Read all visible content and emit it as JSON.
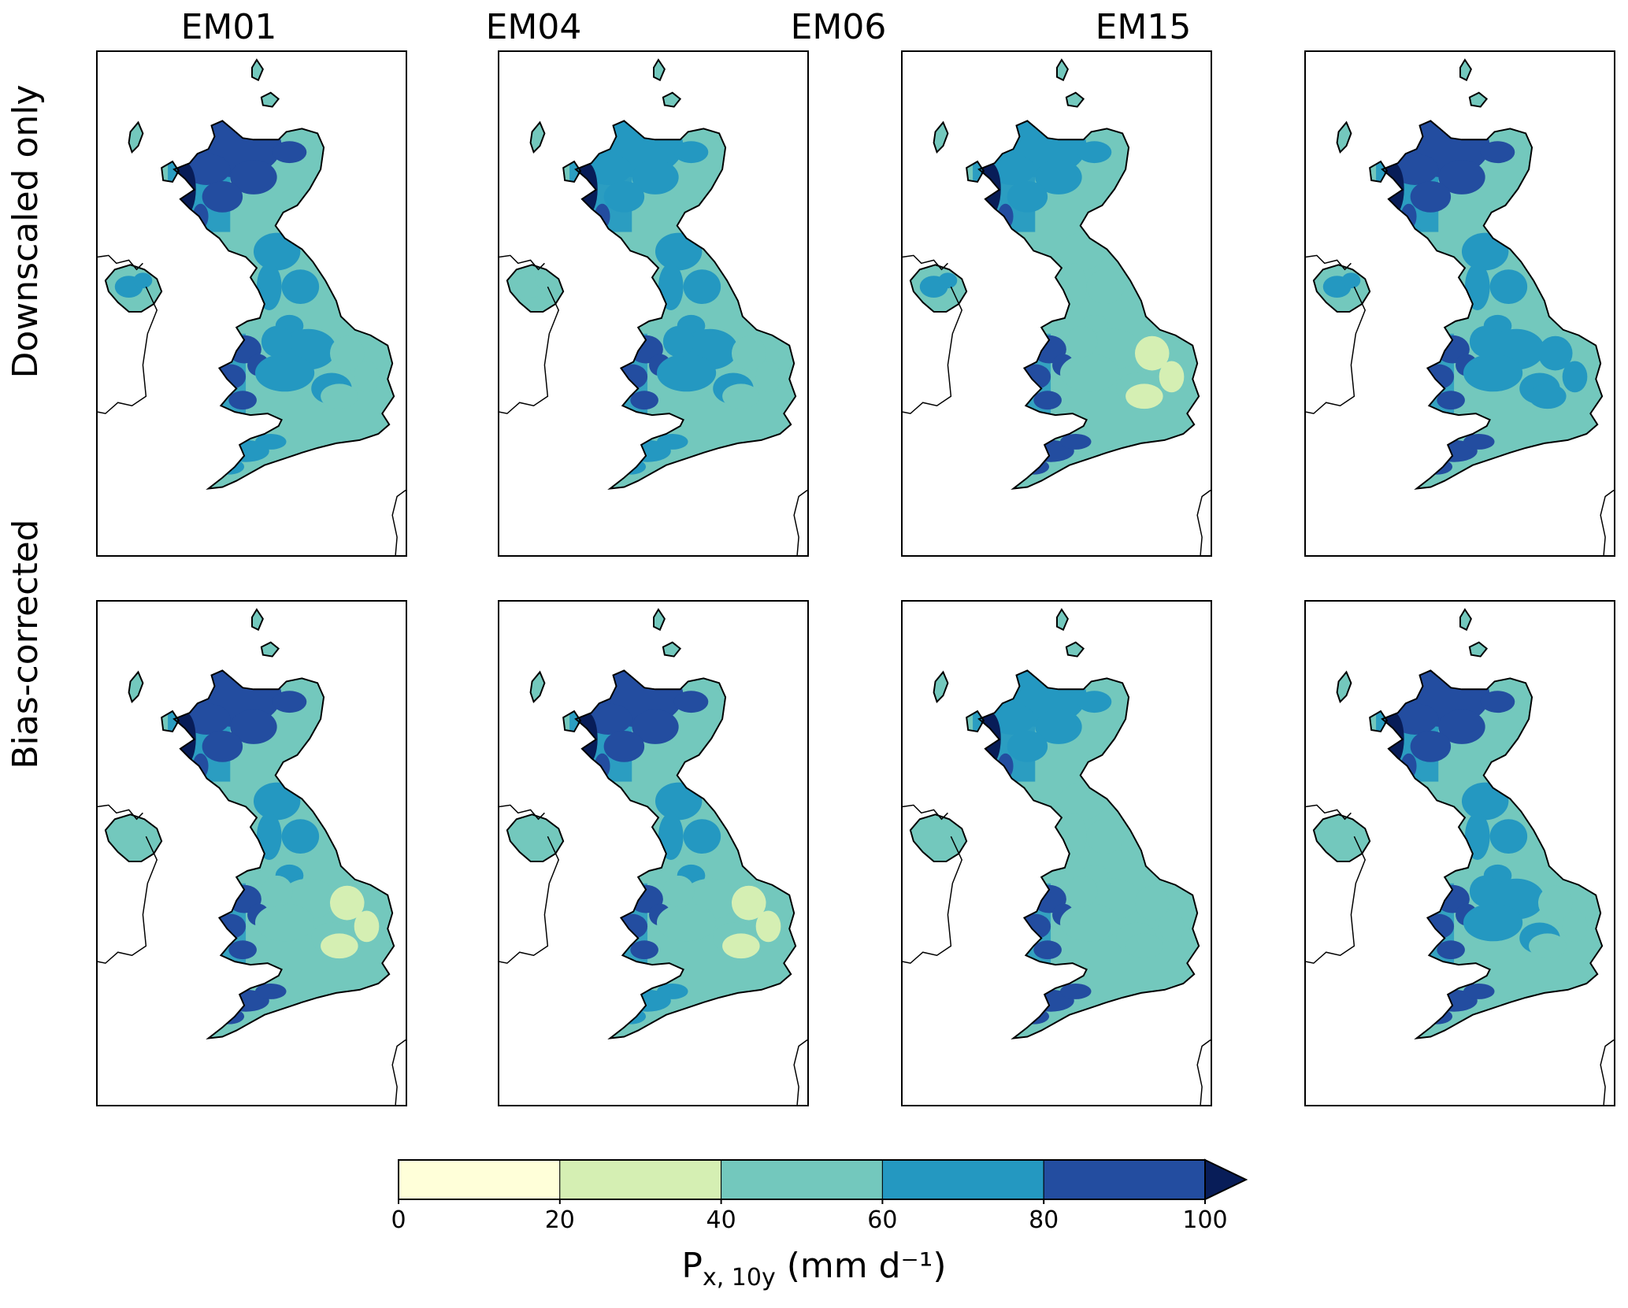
{
  "figure": {
    "columns": [
      "EM01",
      "EM04",
      "EM06",
      "EM15"
    ],
    "rows": [
      "Downscaled only",
      "Bias-corrected"
    ],
    "panel_fill_pattern": {
      "Downscaled only": {
        "EM01": {
          "scotland": 4,
          "wales": 4,
          "north_england": 3,
          "midlands": 3,
          "east_anglia": 2,
          "southwest": 3,
          "northern_ireland": 3
        },
        "EM04": {
          "scotland": 3,
          "wales": 4,
          "north_england": 3,
          "midlands": 3,
          "east_anglia": 2,
          "southwest": 3,
          "northern_ireland": 2
        },
        "EM06": {
          "scotland": 3,
          "wales": 4,
          "north_england": 2,
          "midlands": 2,
          "east_anglia": 1,
          "southwest": 4,
          "northern_ireland": 3
        },
        "EM15": {
          "scotland": 4,
          "wales": 4,
          "north_england": 3,
          "midlands": 3,
          "east_anglia": 3,
          "southwest": 4,
          "northern_ireland": 3
        }
      },
      "Bias-corrected": {
        "EM01": {
          "scotland": 4,
          "wales": 4,
          "north_england": 3,
          "midlands": 2,
          "east_anglia": 1,
          "southwest": 4
        },
        "EM04": {
          "scotland": 4,
          "wales": 4,
          "north_england": 3,
          "midlands": 2,
          "east_anglia": 1,
          "southwest": 3
        },
        "EM06": {
          "scotland": 3,
          "wales": 4,
          "north_england": 2,
          "midlands": 2,
          "east_anglia": 2,
          "southwest": 4
        },
        "EM15": {
          "scotland": 4,
          "wales": 4,
          "north_england": 3,
          "midlands": 3,
          "east_anglia": 2,
          "southwest": 4
        }
      }
    }
  },
  "colorbar": {
    "boundaries": [
      0,
      20,
      40,
      60,
      80,
      100
    ],
    "tick_labels": [
      "0",
      "20",
      "40",
      "60",
      "80",
      "100"
    ],
    "colors": [
      "#ffffd9",
      "#d5efb3",
      "#73c8bd",
      "#2498c1",
      "#234da0",
      "#081d58"
    ],
    "extend": "max",
    "label_main": "P",
    "label_subscript": "x, 10y",
    "label_units": " (mm d⁻¹)"
  }
}
